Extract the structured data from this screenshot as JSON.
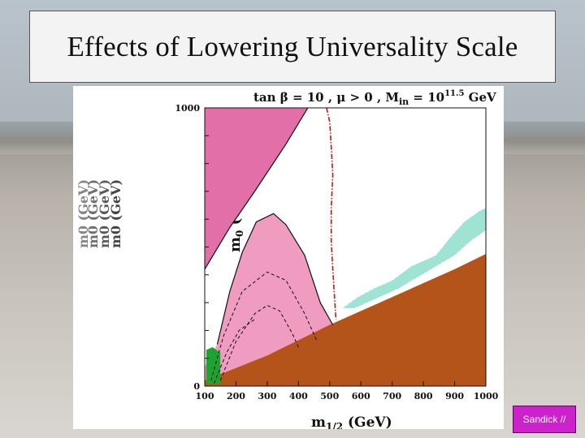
{
  "slide": {
    "title": "Effects of Lowering Universality Scale",
    "badge": "Sandick //"
  },
  "chart_data": {
    "type": "area",
    "annotation_title": "tan β = 10 ,  μ > 0 , M",
    "annotation_sub": "in",
    "annotation_eq": " = 10",
    "annotation_exp": "11.5",
    "annotation_unit": " GeV",
    "xlabel": "m",
    "xlabel_sub": "1/2",
    "xlabel_unit": " (GeV)",
    "ylabel": "m",
    "ylabel_sub": "0",
    "ylabel_unit": " (GeV)",
    "ghost_ylabels": [
      "m0 (GeV)",
      "m0 (GeV)",
      "m0 (GeV)",
      "m0 (GeV)"
    ],
    "xlim": [
      100,
      1000
    ],
    "ylim": [
      0,
      1000
    ],
    "xticks": [
      "100",
      "200",
      "300",
      "400",
      "500",
      "600",
      "700",
      "800",
      "900",
      "1000"
    ],
    "yticks": [
      "0",
      "1000"
    ],
    "colors": {
      "stau_lsp": "#b4541b",
      "tachyonic": "#e36fa8",
      "g_minus_2": "#f09bc0",
      "relic_density": "#9ee3d3",
      "bsg": "#1ea230",
      "higgs_line": "#cc1111"
    },
    "regions": [
      {
        "name": "stau_lsp",
        "points": [
          [
            100,
            0
          ],
          [
            100,
            20
          ],
          [
            300,
            110
          ],
          [
            500,
            220
          ],
          [
            700,
            320
          ],
          [
            900,
            420
          ],
          [
            1000,
            475
          ],
          [
            1000,
            0
          ]
        ]
      },
      {
        "name": "tachyonic",
        "points": [
          [
            100,
            1000
          ],
          [
            100,
            420
          ],
          [
            180,
            570
          ],
          [
            260,
            700
          ],
          [
            360,
            870
          ],
          [
            430,
            1000
          ]
        ]
      },
      {
        "name": "g_minus_2",
        "points": [
          [
            100,
            70
          ],
          [
            140,
            150
          ],
          [
            180,
            340
          ],
          [
            220,
            480
          ],
          [
            265,
            590
          ],
          [
            320,
            620
          ],
          [
            360,
            580
          ],
          [
            420,
            470
          ],
          [
            470,
            300
          ],
          [
            510,
            220
          ],
          [
            300,
            110
          ],
          [
            100,
            20
          ]
        ]
      },
      {
        "name": "relic_density",
        "points": [
          [
            540,
            280
          ],
          [
            590,
            320
          ],
          [
            640,
            350
          ],
          [
            700,
            380
          ],
          [
            760,
            430
          ],
          [
            840,
            470
          ],
          [
            890,
            540
          ],
          [
            930,
            590
          ],
          [
            980,
            630
          ],
          [
            1000,
            640
          ],
          [
            1000,
            560
          ],
          [
            950,
            520
          ],
          [
            900,
            470
          ],
          [
            840,
            430
          ],
          [
            780,
            390
          ],
          [
            720,
            350
          ],
          [
            640,
            310
          ],
          [
            580,
            280
          ]
        ]
      },
      {
        "name": "bsg",
        "points": [
          [
            105,
            8
          ],
          [
            105,
            130
          ],
          [
            125,
            140
          ],
          [
            150,
            120
          ],
          [
            150,
            8
          ]
        ]
      }
    ],
    "boundaries": [
      {
        "name": "tachyonic_edge",
        "points": [
          [
            100,
            420
          ],
          [
            180,
            570
          ],
          [
            260,
            700
          ],
          [
            360,
            870
          ],
          [
            430,
            1000
          ]
        ]
      },
      {
        "name": "g_minus_2_edge",
        "points": [
          [
            140,
            150
          ],
          [
            180,
            340
          ],
          [
            220,
            480
          ],
          [
            265,
            590
          ],
          [
            320,
            620
          ],
          [
            360,
            580
          ],
          [
            420,
            470
          ],
          [
            470,
            300
          ],
          [
            510,
            220
          ]
        ]
      }
    ],
    "dashed_contours": [
      {
        "points": [
          [
            120,
            20
          ],
          [
            160,
            180
          ],
          [
            220,
            340
          ],
          [
            300,
            410
          ],
          [
            360,
            380
          ],
          [
            420,
            260
          ],
          [
            460,
            160
          ]
        ]
      },
      {
        "points": [
          [
            150,
            20
          ],
          [
            200,
            160
          ],
          [
            260,
            260
          ],
          [
            300,
            290
          ],
          [
            340,
            270
          ],
          [
            380,
            190
          ],
          [
            400,
            140
          ]
        ]
      },
      {
        "points": [
          [
            130,
            10
          ],
          [
            170,
            120
          ],
          [
            210,
            200
          ],
          [
            260,
            240
          ]
        ]
      }
    ],
    "higgs_contour": {
      "points": [
        [
          490,
          1000
        ],
        [
          500,
          950
        ],
        [
          505,
          860
        ],
        [
          510,
          760
        ],
        [
          505,
          640
        ],
        [
          505,
          520
        ],
        [
          510,
          420
        ],
        [
          515,
          330
        ],
        [
          520,
          240
        ]
      ]
    }
  }
}
